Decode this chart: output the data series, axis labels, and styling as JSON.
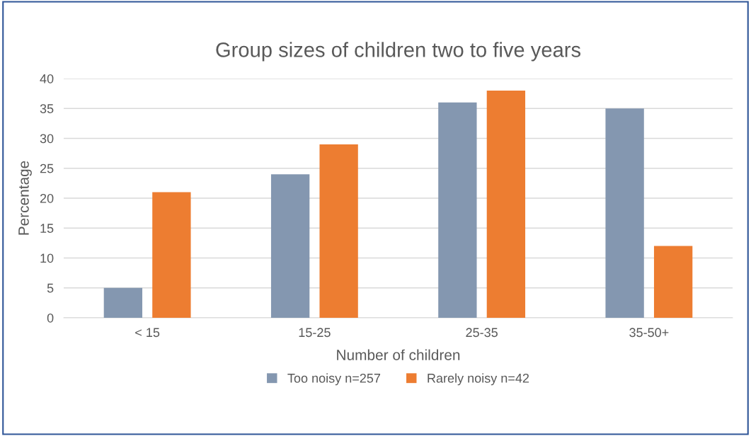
{
  "chart_data": {
    "type": "bar",
    "title": "Group sizes of children two to five years",
    "xlabel": "Number of children",
    "ylabel": "Percentage",
    "categories": [
      "< 15",
      "15-25",
      "25-35",
      "35-50+"
    ],
    "series": [
      {
        "name": "Too noisy n=257",
        "color": "#8497b0",
        "values": [
          5,
          24,
          36,
          35
        ]
      },
      {
        "name": "Rarely noisy n=42",
        "color": "#ed7d31",
        "values": [
          21,
          29,
          38,
          12
        ]
      }
    ],
    "ylim": [
      0,
      40
    ],
    "yticks": [
      0,
      5,
      10,
      15,
      20,
      25,
      30,
      35,
      40
    ],
    "grid": "y",
    "legend": "bottom"
  }
}
